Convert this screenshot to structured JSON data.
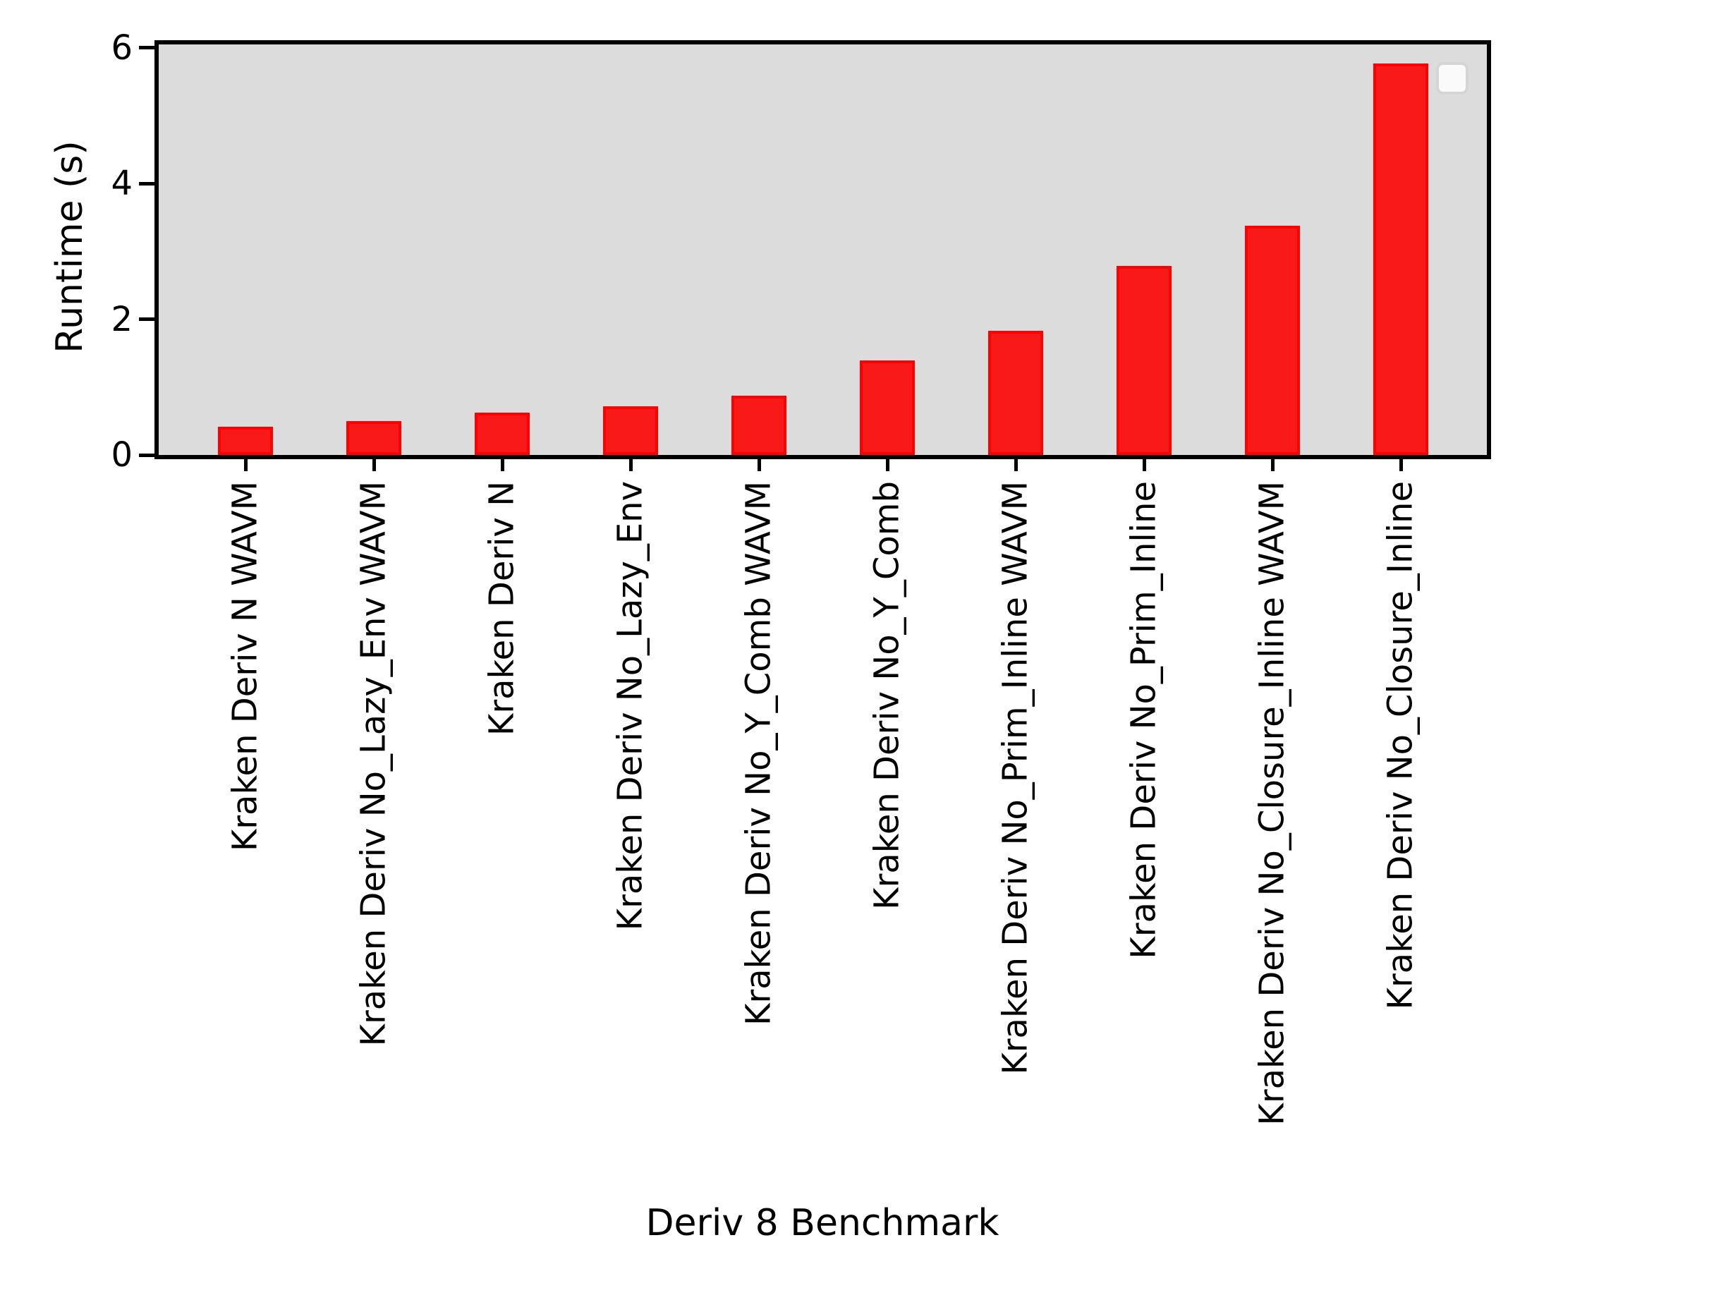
{
  "chart_data": {
    "type": "bar",
    "title": "",
    "xlabel": "Deriv 8 Benchmark",
    "ylabel": "Runtime (s)",
    "categories": [
      "Kraken Deriv N WAVM",
      "Kraken Deriv No_Lazy_Env WAVM",
      "Kraken Deriv N",
      "Kraken Deriv No_Lazy_Env",
      "Kraken Deriv No_Y_Comb WAVM",
      "Kraken Deriv No_Y_Comb",
      "Kraken Deriv No_Prim_Inline WAVM",
      "Kraken Deriv No_Prim_Inline",
      "Kraken Deriv No_Closure_Inline WAVM",
      "Kraken Deriv No_Closure_Inline"
    ],
    "values": [
      0.42,
      0.5,
      0.62,
      0.72,
      0.87,
      1.39,
      1.83,
      2.79,
      3.38,
      5.77
    ],
    "yticks": [
      0,
      2,
      4,
      6
    ],
    "ylim": [
      0,
      6.05
    ],
    "grid": false,
    "legend": {
      "visible": true,
      "entries": [],
      "position": "upper right"
    },
    "colors": {
      "bar_face": "#fa1919",
      "bar_edge": "#ff0000",
      "plot_background": "#dcdcdc",
      "spine": "#000000",
      "legend_face": "#fafafa",
      "legend_edge": "#d5d5d5"
    }
  }
}
